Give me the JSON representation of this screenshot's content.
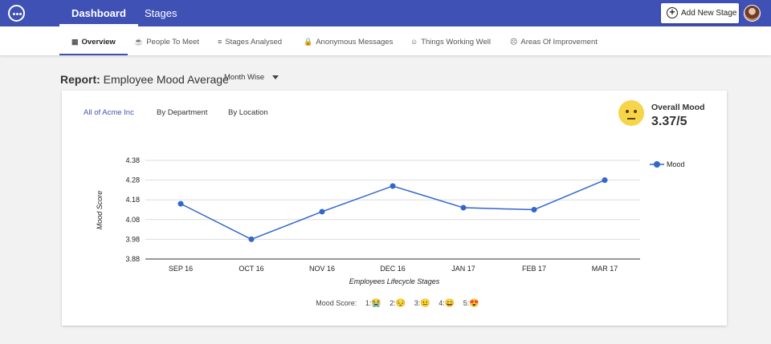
{
  "nav": {
    "tabs": [
      {
        "label": "Dashboard"
      },
      {
        "label": "Stages"
      }
    ],
    "add_button_label": "Add New Stage"
  },
  "subnav": {
    "items": [
      {
        "label": "Overview",
        "icon": "grid-icon"
      },
      {
        "label": "People To Meet",
        "icon": "coffee-icon"
      },
      {
        "label": "Stages Analysed",
        "icon": "list-icon"
      },
      {
        "label": "Anonymous Messages",
        "icon": "lock-icon"
      },
      {
        "label": "Things Working Well",
        "icon": "smile-icon"
      },
      {
        "label": "Areas Of Improvement",
        "icon": "frown-icon"
      }
    ]
  },
  "report": {
    "prefix": "Report:",
    "title": "Employee Mood Average",
    "period": "Month Wise"
  },
  "filters": [
    {
      "label": "All of Acme Inc"
    },
    {
      "label": "By Department"
    },
    {
      "label": "By Location"
    }
  ],
  "overall": {
    "label": "Overall Mood",
    "value": "3.37/5"
  },
  "chart_data": {
    "type": "line",
    "categories": [
      "SEP 16",
      "OCT 16",
      "NOV 16",
      "DEC 16",
      "JAN 17",
      "FEB 17",
      "MAR 17"
    ],
    "series": [
      {
        "name": "Mood",
        "values": [
          4.16,
          3.98,
          4.12,
          4.25,
          4.14,
          4.13,
          4.28
        ],
        "color": "#3366cc"
      }
    ],
    "xlabel": "Employees Lifecycle Stages",
    "ylabel": "Mood Score",
    "yticks": [
      "4.38",
      "4.28",
      "4.18",
      "4.08",
      "3.98",
      "3.88"
    ],
    "ylim": [
      3.88,
      4.38
    ],
    "grid": true,
    "legend": "right"
  },
  "mood_scale": {
    "label": "Mood Score:",
    "items": [
      {
        "label": "1:",
        "emoji": "😭"
      },
      {
        "label": "2:",
        "emoji": "😔"
      },
      {
        "label": "3:",
        "emoji": "😐"
      },
      {
        "label": "4:",
        "emoji": "😄"
      },
      {
        "label": "5:",
        "emoji": "😍"
      }
    ]
  }
}
